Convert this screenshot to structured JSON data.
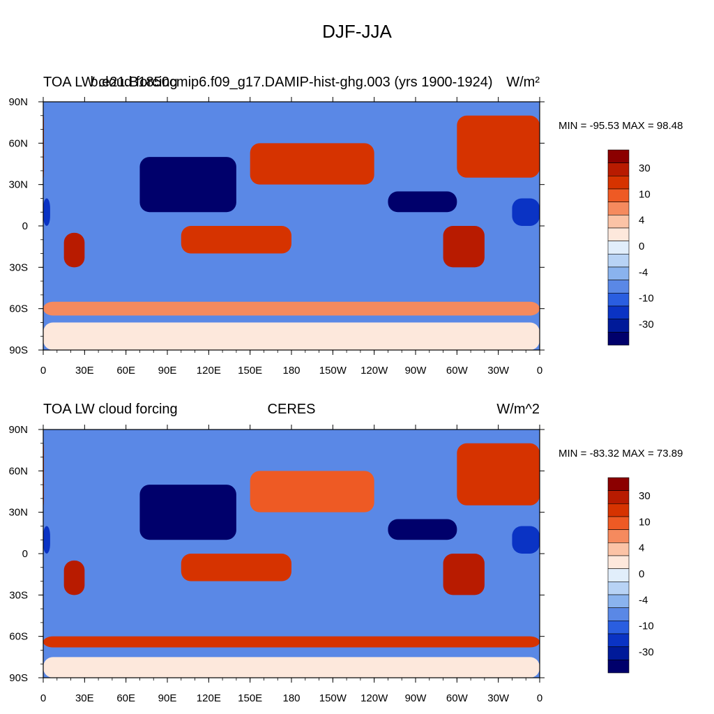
{
  "title": "DJF-JJA",
  "chart_data": [
    {
      "type": "heatmap",
      "left_title": "TOA LW cloud forcing",
      "center_title": "b.e21.B1850cmip6.f09_g17.DAMIP-hist-ghg.003 (yrs 1900-1924)",
      "right_title": "W/m²",
      "min_max_text": "MIN = -95.53 MAX =  98.48",
      "x_ticks": [
        "0",
        "30E",
        "60E",
        "90E",
        "120E",
        "150E",
        "180",
        "150W",
        "120W",
        "90W",
        "60W",
        "30W",
        "0"
      ],
      "y_ticks": [
        "90N",
        "60N",
        "30N",
        "0",
        "30S",
        "60S",
        "90S"
      ],
      "colorbar_labels": [
        "30",
        "10",
        "4",
        "0",
        "-4",
        "-10",
        "-30"
      ],
      "colorbar_colors": [
        "#8b0000",
        "#b81b00",
        "#d63300",
        "#ee5a24",
        "#f58a5e",
        "#fbc3a6",
        "#fde8dc",
        "#e1eefb",
        "#b8d3f5",
        "#8ab3ee",
        "#5a88e6",
        "#2a5ee0",
        "#0a33c4",
        "#001a99",
        "#00006b"
      ],
      "regions": [
        {
          "lon": [
            -20,
            5
          ],
          "lat": [
            0,
            20
          ],
          "value": -15
        },
        {
          "lon": [
            15,
            30
          ],
          "lat": [
            -30,
            -5
          ],
          "value": 40
        },
        {
          "lon": [
            70,
            140
          ],
          "lat": [
            10,
            50
          ],
          "value": -40
        },
        {
          "lon": [
            100,
            180
          ],
          "lat": [
            -20,
            0
          ],
          "value": 20
        },
        {
          "lon": [
            150,
            240
          ],
          "lat": [
            30,
            60
          ],
          "value": 20
        },
        {
          "lon": [
            -70,
            -40
          ],
          "lat": [
            -30,
            0
          ],
          "value": 45
        },
        {
          "lon": [
            -110,
            -60
          ],
          "lat": [
            10,
            25
          ],
          "value": -40
        },
        {
          "lon": [
            -60,
            0
          ],
          "lat": [
            35,
            80
          ],
          "value": 20
        },
        {
          "lon": [
            -180,
            180
          ],
          "lat": [
            -65,
            -55
          ],
          "value": 8
        },
        {
          "lon": [
            -180,
            180
          ],
          "lat": [
            -90,
            -70
          ],
          "value": 2
        }
      ]
    },
    {
      "type": "heatmap",
      "left_title": "TOA LW cloud forcing",
      "center_title": "CERES",
      "right_title": "W/m^2",
      "min_max_text": "MIN = -83.32 MAX =  73.89",
      "x_ticks": [
        "0",
        "30E",
        "60E",
        "90E",
        "120E",
        "150E",
        "180",
        "150W",
        "120W",
        "90W",
        "60W",
        "30W",
        "0"
      ],
      "y_ticks": [
        "90N",
        "60N",
        "30N",
        "0",
        "30S",
        "60S",
        "90S"
      ],
      "colorbar_labels": [
        "30",
        "10",
        "4",
        "0",
        "-4",
        "-10",
        "-30"
      ],
      "colorbar_colors": [
        "#8b0000",
        "#b81b00",
        "#d63300",
        "#ee5a24",
        "#f58a5e",
        "#fbc3a6",
        "#fde8dc",
        "#e1eefb",
        "#b8d3f5",
        "#8ab3ee",
        "#5a88e6",
        "#2a5ee0",
        "#0a33c4",
        "#001a99",
        "#00006b"
      ],
      "regions": [
        {
          "lon": [
            -20,
            5
          ],
          "lat": [
            0,
            20
          ],
          "value": -15
        },
        {
          "lon": [
            15,
            30
          ],
          "lat": [
            -30,
            -5
          ],
          "value": 35
        },
        {
          "lon": [
            70,
            140
          ],
          "lat": [
            10,
            50
          ],
          "value": -35
        },
        {
          "lon": [
            100,
            180
          ],
          "lat": [
            -20,
            0
          ],
          "value": 20
        },
        {
          "lon": [
            150,
            240
          ],
          "lat": [
            30,
            60
          ],
          "value": 18
        },
        {
          "lon": [
            -70,
            -40
          ],
          "lat": [
            -30,
            0
          ],
          "value": 40
        },
        {
          "lon": [
            -110,
            -60
          ],
          "lat": [
            10,
            25
          ],
          "value": -35
        },
        {
          "lon": [
            -60,
            0
          ],
          "lat": [
            35,
            80
          ],
          "value": 20
        },
        {
          "lon": [
            -180,
            180
          ],
          "lat": [
            -68,
            -60
          ],
          "value": 20
        },
        {
          "lon": [
            -180,
            180
          ],
          "lat": [
            -90,
            -75
          ],
          "value": 2
        }
      ]
    }
  ]
}
